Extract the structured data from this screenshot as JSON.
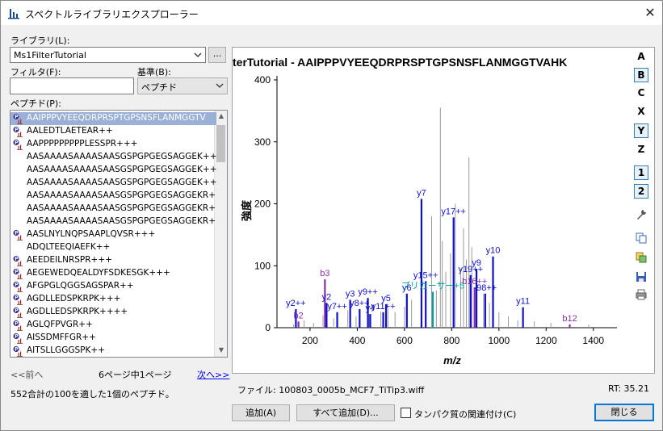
{
  "window": {
    "title": "スペクトルライブラリエクスプローラー",
    "close_label": "✕"
  },
  "library": {
    "label": "ライブラリ(L):",
    "value": "Ms1FilterTutorial",
    "browse_label": "..."
  },
  "filter": {
    "label": "フィルタ(F):",
    "value": ""
  },
  "criteria": {
    "label": "基準(B):",
    "value": "ペプチド"
  },
  "peptides": {
    "label": "ペプチド(P):",
    "items": [
      {
        "text": "AAIPPPVYEEQDRPRSPTGPSNSFLANMGGTV",
        "icon": true,
        "selected": true
      },
      {
        "text": "AALEDTLAETEAR++",
        "icon": true,
        "selected": false
      },
      {
        "text": "AAPPPPPPPPPLESSPR+++",
        "icon": true,
        "selected": false
      },
      {
        "text": "AASAAAASAAAASAASGSPGPGEGSAGGEK++",
        "icon": false,
        "selected": false
      },
      {
        "text": "AASAAAASAAAASAASGSPGPGEGSAGGEK++",
        "icon": false,
        "selected": false
      },
      {
        "text": "AASAAAASAAAASAASGSPGPGEGSAGGEK++",
        "icon": false,
        "selected": false
      },
      {
        "text": "AASAAAASAAAASAASGSPGPGEGSAGGEKR+",
        "icon": false,
        "selected": false
      },
      {
        "text": "AASAAAASAAAASAASGSPGPGEGSAGGEKR+",
        "icon": false,
        "selected": false
      },
      {
        "text": "AASAAAASAAAASAASGSPGPGEGSAGGEKR+",
        "icon": false,
        "selected": false
      },
      {
        "text": "AASLNYLNQPSAAPLQVSR+++",
        "icon": true,
        "selected": false
      },
      {
        "text": "ADQLTEEQIAEFK++",
        "icon": false,
        "selected": false
      },
      {
        "text": "AEEDEILNRSPR+++",
        "icon": true,
        "selected": false
      },
      {
        "text": "AEGEWEDQEALDYFSDKESGK+++",
        "icon": true,
        "selected": false
      },
      {
        "text": "AFGPGLQGGSAGSPAR++",
        "icon": true,
        "selected": false
      },
      {
        "text": "AGDLLEDSPKRPK+++",
        "icon": true,
        "selected": false
      },
      {
        "text": "AGDLLEDSPKRPK++++",
        "icon": true,
        "selected": false
      },
      {
        "text": "AGLQFPVGR++",
        "icon": true,
        "selected": false
      },
      {
        "text": "AISSDMFFGR++",
        "icon": true,
        "selected": false
      },
      {
        "text": "AITSLLGGGSPK++",
        "icon": true,
        "selected": false
      }
    ]
  },
  "paging": {
    "prev": "<<前へ",
    "status": "6ページ中1ページ",
    "next": "次へ>>"
  },
  "summary": "552合計の100を適した1個のペプチド。",
  "spectrum": {
    "title": "terTutorial  -  AAIPPPVYEEQDRPRSPTGPSNSFLANMGGTVAHK",
    "file_label": "ファイル: 100803_0005b_MCF7_TiTip3.wiff",
    "rt_label": "RT: 35.21"
  },
  "ion_buttons": [
    {
      "label": "A",
      "on": false
    },
    {
      "label": "B",
      "on": true
    },
    {
      "label": "C",
      "on": false
    },
    {
      "label": "X",
      "on": false
    },
    {
      "label": "Y",
      "on": true
    },
    {
      "label": "Z",
      "on": false
    },
    {
      "label": "1",
      "on": true
    },
    {
      "label": "2",
      "on": true
    }
  ],
  "tool_icons": [
    "wrench-icon",
    "copy-icon",
    "copy-data-icon",
    "save-icon",
    "print-icon"
  ],
  "buttons": {
    "add": "追加(A)",
    "add_all": "すべて追加(D)...",
    "associate_label": "タンパク質の関連付け(C)",
    "close": "閉じる"
  },
  "colors": {
    "b_ion": "#8b2fa8",
    "y_ion": "#1010cc",
    "precursor": "#00a0a0",
    "unmatched": "#9a9a9a",
    "selected_row": "#9ab0d6"
  },
  "chart_data": {
    "type": "bar",
    "title": "terTutorial  -  AAIPPPVYEEQDRPRSPTGPSNSFLANMGGTVAHK",
    "xlabel": "m/z",
    "ylabel": "強度",
    "xlim": [
      60,
      1500
    ],
    "ylim": [
      0,
      400
    ],
    "xticks": [
      200,
      400,
      600,
      800,
      1000,
      1200,
      1400
    ],
    "yticks": [
      0,
      100,
      200,
      300,
      400
    ],
    "grid": false,
    "unmatched_peaks": [
      {
        "mz": 130,
        "intensity": 5
      },
      {
        "mz": 175,
        "intensity": 12
      },
      {
        "mz": 215,
        "intensity": 8
      },
      {
        "mz": 255,
        "intensity": 20
      },
      {
        "mz": 300,
        "intensity": 15
      },
      {
        "mz": 360,
        "intensity": 28
      },
      {
        "mz": 395,
        "intensity": 18
      },
      {
        "mz": 450,
        "intensity": 22
      },
      {
        "mz": 500,
        "intensity": 26
      },
      {
        "mz": 530,
        "intensity": 30
      },
      {
        "mz": 560,
        "intensity": 25
      },
      {
        "mz": 600,
        "intensity": 34
      },
      {
        "mz": 630,
        "intensity": 45
      },
      {
        "mz": 690,
        "intensity": 55
      },
      {
        "mz": 715,
        "intensity": 180
      },
      {
        "mz": 735,
        "intensity": 60
      },
      {
        "mz": 752,
        "intensity": 355
      },
      {
        "mz": 760,
        "intensity": 140
      },
      {
        "mz": 775,
        "intensity": 90
      },
      {
        "mz": 795,
        "intensity": 120
      },
      {
        "mz": 815,
        "intensity": 200
      },
      {
        "mz": 838,
        "intensity": 95
      },
      {
        "mz": 850,
        "intensity": 160
      },
      {
        "mz": 862,
        "intensity": 110
      },
      {
        "mz": 873,
        "intensity": 275
      },
      {
        "mz": 885,
        "intensity": 130
      },
      {
        "mz": 905,
        "intensity": 70
      },
      {
        "mz": 935,
        "intensity": 55
      },
      {
        "mz": 960,
        "intensity": 40
      },
      {
        "mz": 1000,
        "intensity": 25
      },
      {
        "mz": 1040,
        "intensity": 18
      },
      {
        "mz": 1080,
        "intensity": 12
      },
      {
        "mz": 1150,
        "intensity": 10
      },
      {
        "mz": 1220,
        "intensity": 8
      },
      {
        "mz": 1300,
        "intensity": 6
      },
      {
        "mz": 1380,
        "intensity": 5
      }
    ],
    "matched_peaks": [
      {
        "mz": 151,
        "intensity": 10,
        "label": "b2",
        "ion": "b"
      },
      {
        "mz": 140,
        "intensity": 30,
        "label": "y2++",
        "ion": "y"
      },
      {
        "mz": 263,
        "intensity": 78,
        "label": "b3",
        "ion": "b"
      },
      {
        "mz": 270,
        "intensity": 40,
        "label": "y2",
        "ion": "y"
      },
      {
        "mz": 315,
        "intensity": 25,
        "label": "y7++",
        "ion": "y"
      },
      {
        "mz": 370,
        "intensity": 45,
        "label": "y3",
        "ion": "y"
      },
      {
        "mz": 410,
        "intensity": 30,
        "label": "y8++",
        "ion": "y"
      },
      {
        "mz": 445,
        "intensity": 48,
        "label": "y9++",
        "ion": "y"
      },
      {
        "mz": 455,
        "intensity": 22,
        "label": "y4",
        "ion": "y"
      },
      {
        "mz": 510,
        "intensity": 25,
        "label": "y11++",
        "ion": "y"
      },
      {
        "mz": 522,
        "intensity": 38,
        "label": "y5",
        "ion": "y"
      },
      {
        "mz": 610,
        "intensity": 55,
        "label": "y6",
        "ion": "y"
      },
      {
        "mz": 672,
        "intensity": 208,
        "label": "y7",
        "ion": "y"
      },
      {
        "mz": 690,
        "intensity": 75,
        "label": "y15++",
        "ion": "y"
      },
      {
        "mz": 720,
        "intensity": 58,
        "label": "プリカーサー+5",
        "ion": "precursor"
      },
      {
        "mz": 808,
        "intensity": 178,
        "label": "y17++",
        "ion": "y"
      },
      {
        "mz": 880,
        "intensity": 85,
        "label": "y19++",
        "ion": "y"
      },
      {
        "mz": 897,
        "intensity": 65,
        "label": "b16++",
        "ion": "b"
      },
      {
        "mz": 905,
        "intensity": 95,
        "label": "y9",
        "ion": "y"
      },
      {
        "mz": 942,
        "intensity": 55,
        "label": "-98++",
        "ion": "y"
      },
      {
        "mz": 975,
        "intensity": 115,
        "label": "y10",
        "ion": "y"
      },
      {
        "mz": 1102,
        "intensity": 33,
        "label": "y11",
        "ion": "y"
      },
      {
        "mz": 1300,
        "intensity": 5,
        "label": "b12",
        "ion": "b"
      }
    ]
  }
}
